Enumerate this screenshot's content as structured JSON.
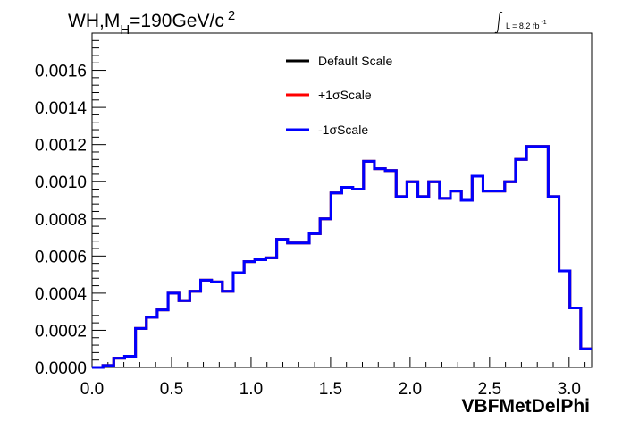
{
  "chart_data": {
    "type": "line",
    "title_main": "WH,M",
    "title_sub": "H",
    "title_rest": "=190GeV/c",
    "title_sup": "2",
    "lumi_text": "L = 8.2 fb",
    "lumi_sup": "-1",
    "xlabel": "VBFMetDelPhi",
    "ylabel": "",
    "xlim": [
      0,
      3.1416
    ],
    "ylim": [
      0,
      0.0018
    ],
    "x_ticks": [
      "0.0",
      "0.5",
      "1.0",
      "1.5",
      "2.0",
      "2.5",
      "3.0"
    ],
    "y_ticks": [
      "0.0000",
      "0.0002",
      "0.0004",
      "0.0006",
      "0.0008",
      "0.0010",
      "0.0012",
      "0.0014",
      "0.0016"
    ],
    "grid": false,
    "legend_position": "top-center",
    "bin_edges_start": 0,
    "bin_edges_end": 3.1416,
    "series": [
      {
        "name": "Default Scale",
        "color": "#000000",
        "values": [
          0.0,
          1e-05,
          5e-05,
          6e-05,
          0.00021,
          0.00027,
          0.00031,
          0.0004,
          0.00036,
          0.00041,
          0.00047,
          0.00046,
          0.00041,
          0.00051,
          0.00057,
          0.00058,
          0.00059,
          0.00069,
          0.00067,
          0.00067,
          0.00072,
          0.0008,
          0.00094,
          0.00097,
          0.00096,
          0.00111,
          0.00107,
          0.00106,
          0.00092,
          0.001,
          0.00092,
          0.001,
          0.00091,
          0.00095,
          0.0009,
          0.00103,
          0.00095,
          0.00095,
          0.001,
          0.00112,
          0.00119,
          0.00119,
          0.00092,
          0.00052,
          0.00032,
          0.0001
        ]
      },
      {
        "name": "+1σScale",
        "color": "#ff0000",
        "values": [
          0.0,
          1e-05,
          5e-05,
          6e-05,
          0.00021,
          0.00027,
          0.00031,
          0.0004,
          0.00036,
          0.00041,
          0.00047,
          0.00046,
          0.00041,
          0.00051,
          0.00057,
          0.00058,
          0.00059,
          0.00069,
          0.00067,
          0.00067,
          0.00072,
          0.0008,
          0.00094,
          0.00097,
          0.00096,
          0.00111,
          0.00107,
          0.00106,
          0.00092,
          0.001,
          0.00092,
          0.001,
          0.00091,
          0.00095,
          0.0009,
          0.00103,
          0.00095,
          0.00095,
          0.001,
          0.00112,
          0.00119,
          0.00119,
          0.00092,
          0.00052,
          0.00032,
          0.0001
        ]
      },
      {
        "name": "-1σScale",
        "color": "#0000ff",
        "values": [
          0.0,
          1e-05,
          5e-05,
          6e-05,
          0.00021,
          0.00027,
          0.00031,
          0.0004,
          0.00036,
          0.00041,
          0.00047,
          0.00046,
          0.00041,
          0.00051,
          0.00057,
          0.00058,
          0.00059,
          0.00069,
          0.00067,
          0.00067,
          0.00072,
          0.0008,
          0.00094,
          0.00097,
          0.00096,
          0.00111,
          0.00107,
          0.00106,
          0.00092,
          0.001,
          0.00092,
          0.001,
          0.00091,
          0.00095,
          0.0009,
          0.00103,
          0.00095,
          0.00095,
          0.001,
          0.00112,
          0.00119,
          0.00119,
          0.00092,
          0.00052,
          0.00032,
          0.0001
        ]
      }
    ]
  }
}
